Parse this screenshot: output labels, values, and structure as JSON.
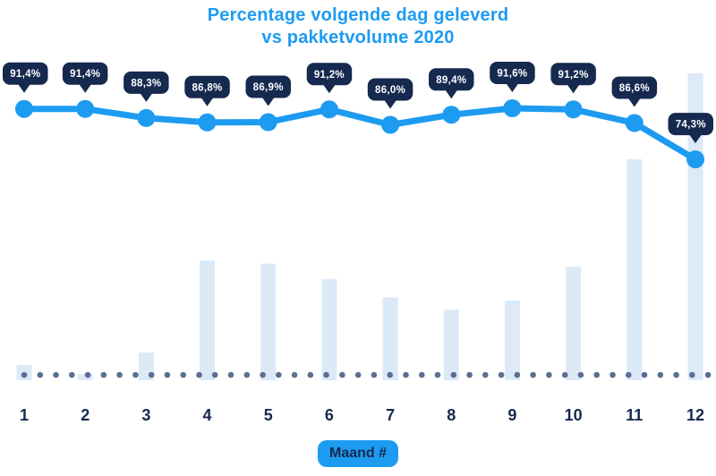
{
  "title": {
    "line1": "Percentage volgende dag geleverd",
    "line2": "vs pakketvolume 2020"
  },
  "colors": {
    "accent_blue": "#1D9BF0",
    "navy": "#16294F",
    "bar_fill": "#DCEAF8",
    "baseline_dot": "#5C6E92",
    "tooltip_bg": "#16294F",
    "tooltip_text": "#FFFFFF",
    "background": "#FFFFFF"
  },
  "chart_data": {
    "type": "line-bar-combo",
    "title": "Percentage volgende dag geleverd vs pakketvolume 2020",
    "categories": [
      "1",
      "2",
      "3",
      "4",
      "5",
      "6",
      "7",
      "8",
      "9",
      "10",
      "11",
      "12"
    ],
    "xlabel": "Maand #",
    "legend": "none",
    "grid": false,
    "y_axis_visible": false,
    "baseline_style": "dotted",
    "series": [
      {
        "name": "Percentage volgende dag geleverd",
        "type": "line",
        "unit": "%",
        "values": [
          91.4,
          91.4,
          88.3,
          86.8,
          86.9,
          91.2,
          86.0,
          89.4,
          91.6,
          91.2,
          86.6,
          74.3
        ],
        "labels": [
          "91,4%",
          "91,4%",
          "88,3%",
          "86,8%",
          "86,9%",
          "91,2%",
          "86,0%",
          "89,4%",
          "91,6%",
          "91,2%",
          "86,6%",
          "74,3%"
        ]
      },
      {
        "name": "Pakketvolume 2020",
        "type": "bar",
        "unit": "relative volume index (estimated from pixels, max month = 100)",
        "values": [
          5,
          2,
          9,
          39,
          38,
          33,
          27,
          23,
          26,
          37,
          72,
          100
        ]
      }
    ]
  }
}
